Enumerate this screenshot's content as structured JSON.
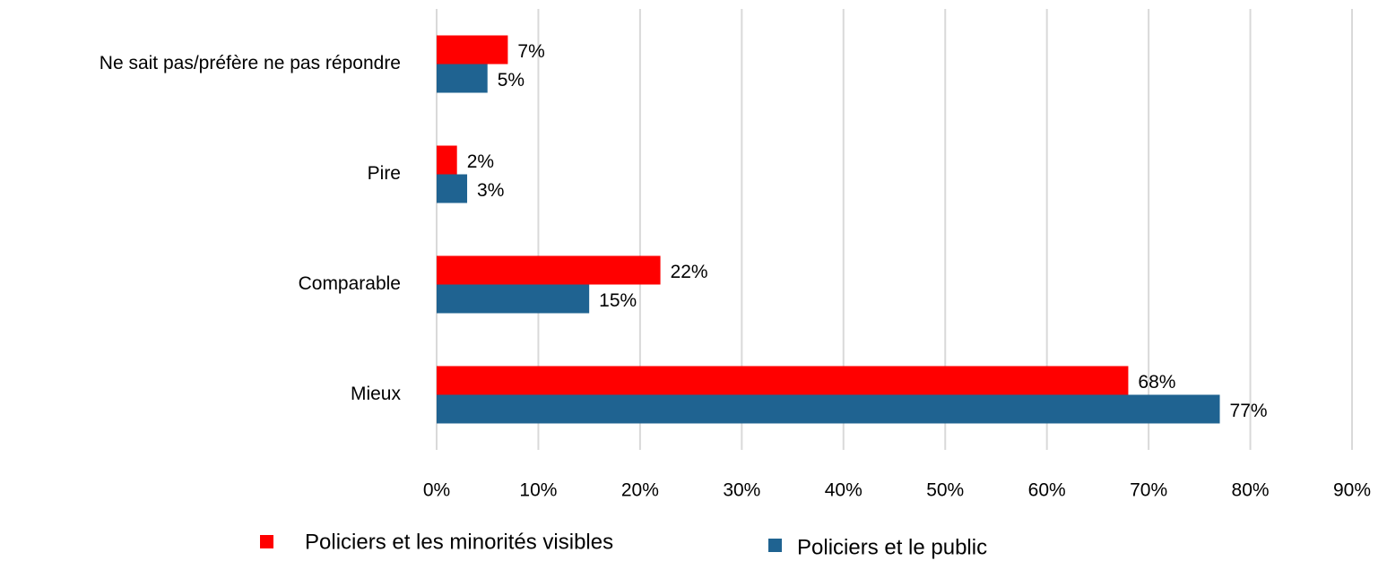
{
  "chart_data": {
    "type": "hbar",
    "categories": [
      "Ne sait pas/préfère ne pas répondre",
      "Pire",
      "Comparable",
      "Mieux"
    ],
    "series": [
      {
        "name": "Policiers et les minorités visibles",
        "color": "#ff0000",
        "values": [
          7,
          2,
          22,
          68
        ],
        "value_labels": [
          "7%",
          "2%",
          "22%",
          "68%"
        ]
      },
      {
        "name": "Policiers et le public",
        "color": "#1f6391",
        "values": [
          5,
          3,
          15,
          77
        ],
        "value_labels": [
          "5%",
          "3%",
          "15%",
          "77%"
        ]
      }
    ],
    "xlim": [
      0,
      90
    ],
    "xticks": [
      {
        "value": 0,
        "label": "0%"
      },
      {
        "value": 10,
        "label": "10%"
      },
      {
        "value": 20,
        "label": "20%"
      },
      {
        "value": 30,
        "label": "30%"
      },
      {
        "value": 40,
        "label": "40%"
      },
      {
        "value": 50,
        "label": "50%"
      },
      {
        "value": 60,
        "label": "60%"
      },
      {
        "value": 70,
        "label": "70%"
      },
      {
        "value": 80,
        "label": "80%"
      },
      {
        "value": 90,
        "label": "90%"
      }
    ],
    "grid": true,
    "legend": "bottom"
  }
}
